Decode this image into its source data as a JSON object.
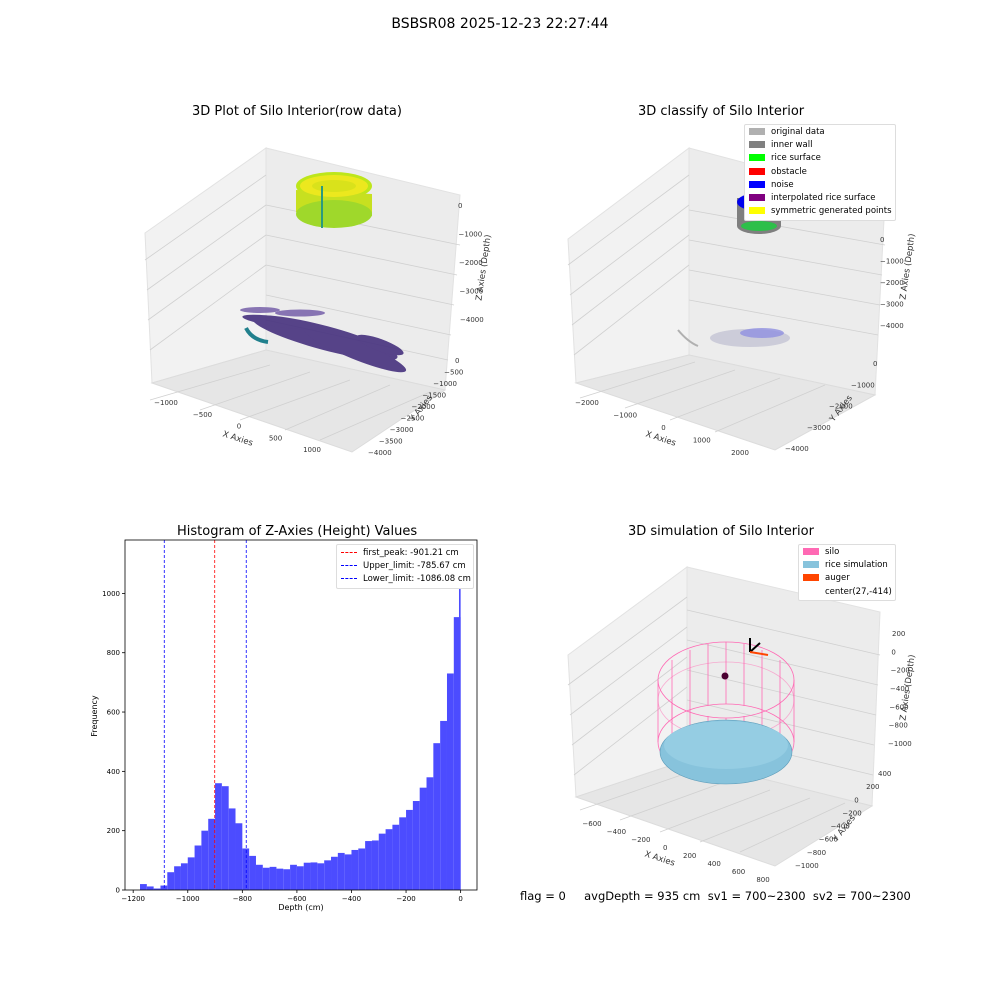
{
  "figure": {
    "title": "BSBSR08 2025-12-23 22:27:44",
    "status_line": "flag = 0     avgDepth = 935 cm  sv1 = 700~2300  sv2 = 700~2300"
  },
  "colors": {
    "viridis_top": "#d9e21b",
    "viridis_bottom": "#46317e",
    "teal": "#21808d",
    "hist_bar": "#4c4cff",
    "silo_wire": "#ff69b4",
    "rice_sim": "#87c3dc",
    "auger": "#ff4500",
    "pane_bg": "#f2f2f2"
  },
  "chart_data": [
    {
      "type": "scatter3d",
      "title": "3D Plot of Silo Interior(row data)",
      "xlabel": "X Axies",
      "ylabel": "Y Axies",
      "zlabel": "Z Axies (Depth)",
      "x_ticks": [
        "-1000",
        "-500",
        "0",
        "500",
        "1000"
      ],
      "y_ticks": [
        "0",
        "-500",
        "-1000",
        "-1500",
        "-2000",
        "-2500",
        "-3000",
        "-3500",
        "-4000"
      ],
      "z_ticks": [
        "0",
        "-1000",
        "-2000",
        "-3000",
        "-4000"
      ],
      "colormap": "viridis",
      "grid": true
    },
    {
      "type": "scatter3d",
      "title": "3D classify of Silo Interior",
      "xlabel": "X Axies",
      "ylabel": "Y Axies",
      "zlabel": "Z Axies (Depth)",
      "x_ticks": [
        "-2000",
        "-1000",
        "0",
        "1000",
        "2000"
      ],
      "y_ticks": [
        "0",
        "-1000",
        "-2000",
        "-3000",
        "-4000"
      ],
      "z_ticks": [
        "0",
        "-1000",
        "-2000",
        "-3000",
        "-4000"
      ],
      "legend_position": "top-right",
      "legend": [
        {
          "label": "original data",
          "color": "#b0b0b0"
        },
        {
          "label": "inner wall",
          "color": "#808080"
        },
        {
          "label": "rice surface",
          "color": "#00ff00"
        },
        {
          "label": "obstacle",
          "color": "#ff0000"
        },
        {
          "label": "noise",
          "color": "#0000ff"
        },
        {
          "label": "interpolated rice surface",
          "color": "#800080"
        },
        {
          "label": "symmetric generated points",
          "color": "#ffff00"
        }
      ],
      "grid": true
    },
    {
      "type": "bar",
      "title": "Histogram of Z-Axies (Height) Values",
      "xlabel": "Depth (cm)",
      "ylabel": "Frequency",
      "bin_width": 25,
      "x": [
        -1162.5,
        -1137.5,
        -1112.5,
        -1087.5,
        -1062.5,
        -1037.5,
        -1012.5,
        -987.5,
        -962.5,
        -937.5,
        -912.5,
        -887.5,
        -862.5,
        -837.5,
        -812.5,
        -787.5,
        -762.5,
        -737.5,
        -712.5,
        -687.5,
        -662.5,
        -637.5,
        -612.5,
        -587.5,
        -562.5,
        -537.5,
        -512.5,
        -487.5,
        -462.5,
        -437.5,
        -412.5,
        -387.5,
        -362.5,
        -337.5,
        -312.5,
        -287.5,
        -262.5,
        -237.5,
        -212.5,
        -187.5,
        -162.5,
        -137.5,
        -112.5,
        -87.5,
        -62.5,
        -37.5,
        -12.5
      ],
      "values": [
        20,
        12,
        5,
        15,
        60,
        80,
        90,
        110,
        150,
        200,
        240,
        360,
        350,
        275,
        225,
        140,
        115,
        85,
        75,
        78,
        72,
        70,
        85,
        80,
        92,
        93,
        90,
        100,
        112,
        125,
        120,
        135,
        140,
        165,
        167,
        190,
        205,
        220,
        245,
        270,
        300,
        345,
        380,
        495,
        570,
        730,
        920
      ],
      "extra_bar": {
        "x": -3,
        "value": 1120
      },
      "xlim": [
        -1230,
        60
      ],
      "ylim": [
        0,
        1180
      ],
      "x_ticks": [
        -1200,
        -1000,
        -800,
        -600,
        -400,
        -200,
        0
      ],
      "y_ticks": [
        0,
        200,
        400,
        600,
        800,
        1000
      ],
      "vlines": [
        {
          "label": "first_peak: -901.21 cm",
          "x": -901.21,
          "color": "#ff0000"
        },
        {
          "label": "Upper_limit: -785.67 cm",
          "x": -785.67,
          "color": "#0000ff"
        },
        {
          "label": "Lower_limit: -1086.08 cm",
          "x": -1086.08,
          "color": "#0000ff"
        }
      ],
      "legend_position": "top-right",
      "grid": false
    },
    {
      "type": "surface3d",
      "title": "3D simulation of Silo Interior",
      "xlabel": "X Axies",
      "ylabel": "Y Axies",
      "zlabel": "Z Axies (Depth)",
      "x_ticks": [
        "-600",
        "-400",
        "-200",
        "0",
        "200",
        "400",
        "600",
        "800"
      ],
      "y_ticks": [
        "400",
        "200",
        "0",
        "-200",
        "-400",
        "-600",
        "-800",
        "-1000"
      ],
      "z_ticks": [
        "200",
        "0",
        "-200",
        "-400",
        "-600",
        "-800",
        "-1000"
      ],
      "legend_position": "top-right",
      "legend": [
        {
          "label": "silo",
          "color": "#ff69b4"
        },
        {
          "label": "rice simulation",
          "color": "#87c3dc"
        },
        {
          "label": "auger",
          "color": "#ff4500"
        },
        {
          "label": "center(27,-414)",
          "color": "none"
        }
      ],
      "grid": true
    }
  ]
}
